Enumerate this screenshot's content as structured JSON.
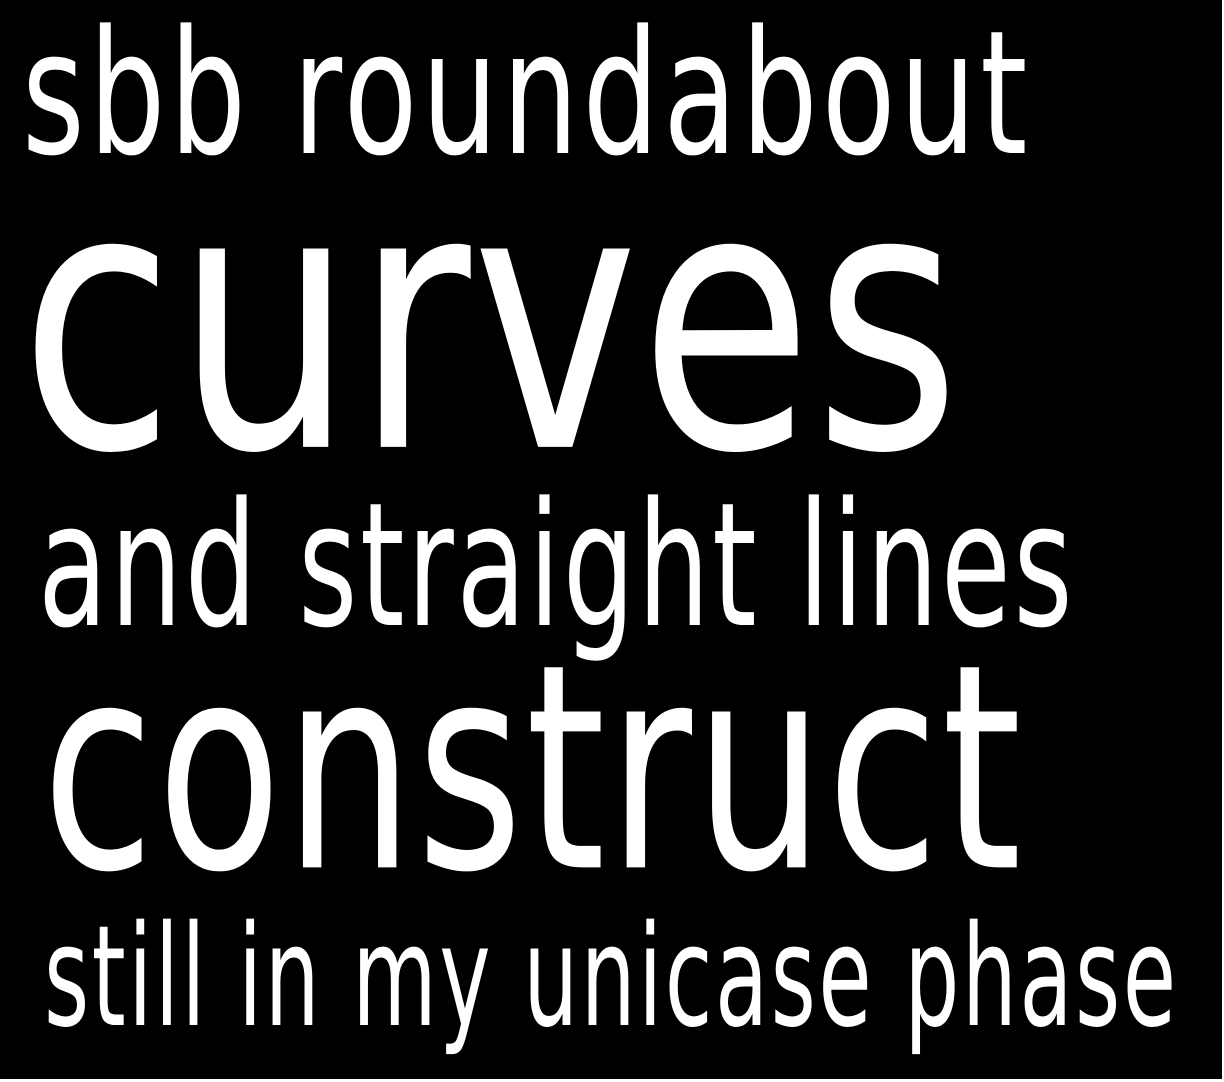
{
  "poster": {
    "background_color": "#000000",
    "text_color": "#ffffff",
    "lines": [
      "sbb roundabout",
      "curves",
      "and straight lines",
      "construct",
      "still in my unicase phase"
    ]
  }
}
